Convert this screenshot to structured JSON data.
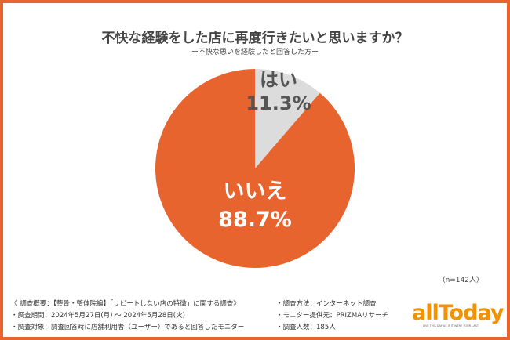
{
  "title": "不快な経験をした店に再度行きたいと思いますか？",
  "subtitle": "ー不快な思いを経験したと回答した方ー",
  "sample_note": "（n=142人）",
  "chart_data": {
    "type": "pie",
    "title": "不快な経験をした店に再度行きたいと思いますか？",
    "subtitle": "ー不快な思いを経験したと回答した方ー",
    "slices": [
      {
        "label": "はい",
        "value": 11.3,
        "display": "11.3%",
        "color": "#DCDCDC",
        "text_color": "#555555"
      },
      {
        "label": "いいえ",
        "value": 88.7,
        "display": "88.7%",
        "color": "#E8642F",
        "text_color": "#FFFFFF"
      }
    ],
    "start": "top",
    "direction": "clockwise"
  },
  "notes_left": [
    "《 調査概要：【整骨・整体院編】「リピートしない店の特徴」に関する調査》",
    "・調査期間：2024年5月27日(月) ～ 2024年5月28日(火)",
    "・調査対象：調査回答時に店舗利用者（ユーザー）であると回答したモニター"
  ],
  "notes_right": [
    "・調査方法：インターネット調査",
    "・モニター提供元：PRIZMAリサーチ",
    "・調査人数：185人"
  ],
  "logo": {
    "word": "allToday",
    "tagline": "LIVE THIS DAY AS IF IT WERE YOUR LAST",
    "color": "#F39200"
  }
}
